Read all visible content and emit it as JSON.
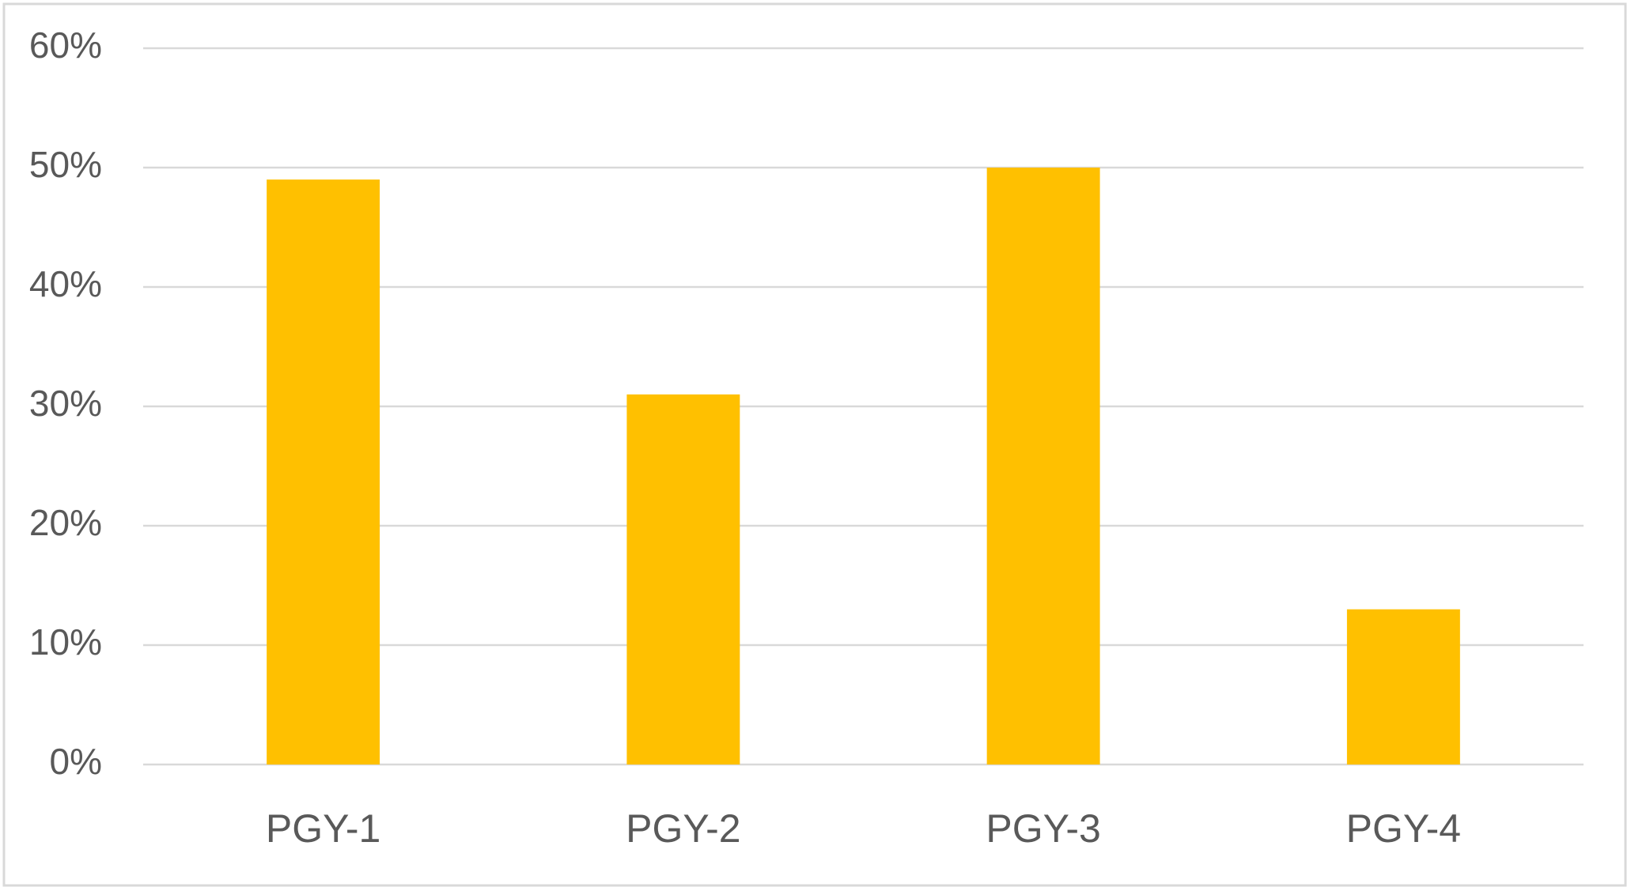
{
  "chart_data": {
    "type": "bar",
    "categories": [
      "PGY-1",
      "PGY-2",
      "PGY-3",
      "PGY-4"
    ],
    "values": [
      49,
      31,
      50,
      13
    ],
    "color": "#ffc000",
    "ylim": [
      0,
      60
    ],
    "yticks": [
      {
        "value": 0,
        "label": "0%"
      },
      {
        "value": 10,
        "label": "10%"
      },
      {
        "value": 20,
        "label": "20%"
      },
      {
        "value": 30,
        "label": "30%"
      },
      {
        "value": 40,
        "label": "40%"
      },
      {
        "value": 50,
        "label": "50%"
      },
      {
        "value": 60,
        "label": "60%"
      }
    ],
    "grid": true
  }
}
